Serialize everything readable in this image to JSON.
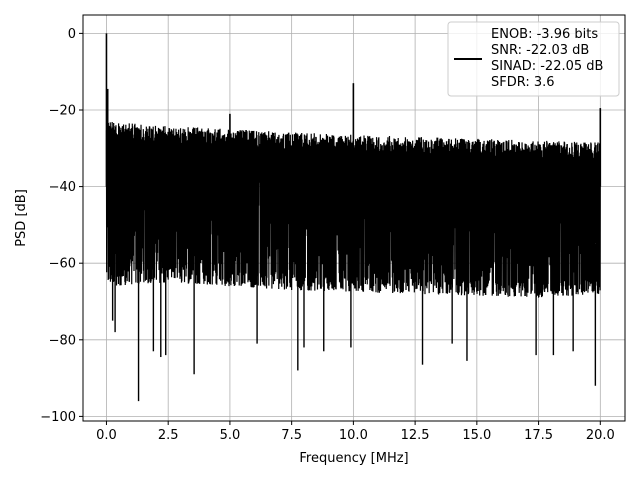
{
  "chart_data": {
    "type": "line",
    "xlabel": "Frequency [MHz]",
    "ylabel": "PSD [dB]",
    "xlim": [
      -0.95,
      21.0
    ],
    "ylim": [
      -101.2,
      4.8
    ],
    "xticks": [
      0.0,
      2.5,
      5.0,
      7.5,
      10.0,
      12.5,
      15.0,
      17.5,
      20.0
    ],
    "xtick_labels": [
      "0.0",
      "2.5",
      "5.0",
      "7.5",
      "10.0",
      "12.5",
      "15.0",
      "17.5",
      "20.0"
    ],
    "yticks": [
      0,
      -20,
      -40,
      -60,
      -80,
      -100
    ],
    "ytick_labels": [
      "0",
      "−20",
      "−40",
      "−60",
      "−80",
      "−100"
    ],
    "grid": true,
    "legend": {
      "placement": "top-right",
      "entries": [
        "ENOB: -3.96 bits",
        "SNR: -22.03 dB",
        "SINAD: -22.05 dB",
        "SFDR: 3.6"
      ]
    },
    "series": [
      {
        "color": "#000000",
        "x_range": [
          0.0,
          20.0
        ],
        "noise_band": {
          "upper_envelope": {
            "x": [
              0.0,
              0.4,
              2.0,
              5.0,
              10.0,
              15.0,
              20.0
            ],
            "y": [
              -22,
              -23,
              -24,
              -25,
              -26.5,
              -27.5,
              -28.5
            ]
          },
          "lower_envelope": {
            "x": [
              0.0,
              2.5,
              7.5,
              12.5,
              17.5,
              20.0
            ],
            "y": [
              -66,
              -65,
              -67,
              -68,
              -69,
              -68
            ]
          }
        },
        "peaks": [
          {
            "x": 0.0,
            "y": 0
          },
          {
            "x": 0.05,
            "y": -14.5
          },
          {
            "x": 10.0,
            "y": -13
          },
          {
            "x": 20.0,
            "y": -19.5
          },
          {
            "x": 5.0,
            "y": -21
          }
        ],
        "dips": [
          {
            "x": 0.25,
            "y": -75
          },
          {
            "x": 0.35,
            "y": -78
          },
          {
            "x": 1.3,
            "y": -96
          },
          {
            "x": 1.9,
            "y": -83
          },
          {
            "x": 2.2,
            "y": -84.5
          },
          {
            "x": 2.4,
            "y": -84
          },
          {
            "x": 3.55,
            "y": -89
          },
          {
            "x": 6.1,
            "y": -81
          },
          {
            "x": 7.75,
            "y": -88
          },
          {
            "x": 8.0,
            "y": -82
          },
          {
            "x": 8.8,
            "y": -83
          },
          {
            "x": 9.9,
            "y": -82
          },
          {
            "x": 12.8,
            "y": -86.5
          },
          {
            "x": 14.0,
            "y": -81
          },
          {
            "x": 14.6,
            "y": -85.5
          },
          {
            "x": 17.4,
            "y": -84
          },
          {
            "x": 18.1,
            "y": -84
          },
          {
            "x": 18.9,
            "y": -83
          },
          {
            "x": 19.8,
            "y": -92
          }
        ]
      }
    ]
  }
}
